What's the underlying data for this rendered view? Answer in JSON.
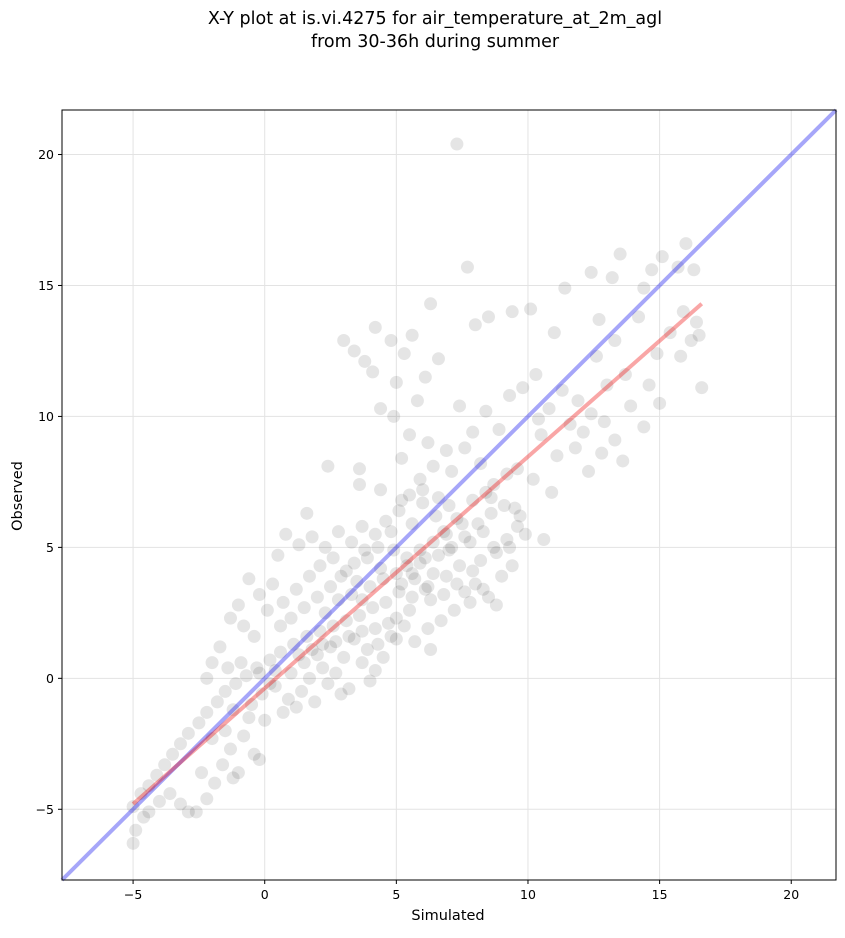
{
  "chart_data": {
    "type": "scatter",
    "title_lines": [
      "X-Y plot at is.vi.4275 for air_temperature_at_2m_agl",
      "from 30-36h during summer"
    ],
    "xlabel": "Simulated",
    "ylabel": "Observed",
    "xlim": [
      -7.7,
      21.7
    ],
    "ylim": [
      -7.7,
      21.7
    ],
    "xticks": [
      -5,
      0,
      5,
      10,
      15,
      20
    ],
    "yticks": [
      -5,
      0,
      5,
      10,
      15,
      20
    ],
    "xtick_labels": [
      "−5",
      "0",
      "5",
      "10",
      "15",
      "20"
    ],
    "ytick_labels": [
      "−5",
      "0",
      "5",
      "10",
      "15",
      "20"
    ],
    "grid": true,
    "legend": "none",
    "point_color": "#000000",
    "point_opacity": 0.1,
    "identity_line": {
      "x": [
        -7.7,
        21.7
      ],
      "y": [
        -7.7,
        21.7
      ],
      "color": "#0000ee",
      "opacity": 0.35
    },
    "fit_line": {
      "x": [
        -5.0,
        16.6
      ],
      "y": [
        -4.8,
        14.3
      ],
      "color": "#ee0000",
      "opacity": 0.35
    },
    "points": [
      [
        7.3,
        20.4
      ],
      [
        16.0,
        16.6
      ],
      [
        13.5,
        16.2
      ],
      [
        15.1,
        16.1
      ],
      [
        12.4,
        15.5
      ],
      [
        14.7,
        15.6
      ],
      [
        15.7,
        15.7
      ],
      [
        14.4,
        14.9
      ],
      [
        13.2,
        15.3
      ],
      [
        16.3,
        15.6
      ],
      [
        4.2,
        13.4
      ],
      [
        4.8,
        12.9
      ],
      [
        5.6,
        13.1
      ],
      [
        6.3,
        14.3
      ],
      [
        7.7,
        15.7
      ],
      [
        8.0,
        13.5
      ],
      [
        8.5,
        13.8
      ],
      [
        9.4,
        14.0
      ],
      [
        10.1,
        14.1
      ],
      [
        11.4,
        14.9
      ],
      [
        11.0,
        13.2
      ],
      [
        12.7,
        13.7
      ],
      [
        13.3,
        12.9
      ],
      [
        14.2,
        13.8
      ],
      [
        16.2,
        12.9
      ],
      [
        16.5,
        13.1
      ],
      [
        15.8,
        12.3
      ],
      [
        14.6,
        11.2
      ],
      [
        15.0,
        10.5
      ],
      [
        16.6,
        11.1
      ],
      [
        3.0,
        12.9
      ],
      [
        3.4,
        12.5
      ],
      [
        3.8,
        12.1
      ],
      [
        4.1,
        11.7
      ],
      [
        5.0,
        11.3
      ],
      [
        5.3,
        12.4
      ],
      [
        6.1,
        11.5
      ],
      [
        6.6,
        12.2
      ],
      [
        5.8,
        10.6
      ],
      [
        4.4,
        10.3
      ],
      [
        4.9,
        10.0
      ],
      [
        5.5,
        9.3
      ],
      [
        6.2,
        9.0
      ],
      [
        6.9,
        8.7
      ],
      [
        7.4,
        10.4
      ],
      [
        7.9,
        9.4
      ],
      [
        8.4,
        10.2
      ],
      [
        8.9,
        9.5
      ],
      [
        9.3,
        10.8
      ],
      [
        9.8,
        11.1
      ],
      [
        10.3,
        11.6
      ],
      [
        10.8,
        10.3
      ],
      [
        11.3,
        11.0
      ],
      [
        11.9,
        10.6
      ],
      [
        12.4,
        10.1
      ],
      [
        12.9,
        9.8
      ],
      [
        13.3,
        9.1
      ],
      [
        13.9,
        10.4
      ],
      [
        14.4,
        9.6
      ],
      [
        10.5,
        9.3
      ],
      [
        11.1,
        8.5
      ],
      [
        11.8,
        8.8
      ],
      [
        12.3,
        7.9
      ],
      [
        12.8,
        8.6
      ],
      [
        13.6,
        8.3
      ],
      [
        10.2,
        7.6
      ],
      [
        9.6,
        8.0
      ],
      [
        10.9,
        7.1
      ],
      [
        9.5,
        6.5
      ],
      [
        10.6,
        5.3
      ],
      [
        2.4,
        8.1
      ],
      [
        3.6,
        8.0
      ],
      [
        3.6,
        7.4
      ],
      [
        4.4,
        7.2
      ],
      [
        5.2,
        8.4
      ],
      [
        5.9,
        7.6
      ],
      [
        6.4,
        8.1
      ],
      [
        7.1,
        7.9
      ],
      [
        7.6,
        8.8
      ],
      [
        8.2,
        8.2
      ],
      [
        8.7,
        7.4
      ],
      [
        9.2,
        7.8
      ],
      [
        8.6,
        6.9
      ],
      [
        9.7,
        6.2
      ],
      [
        9.9,
        5.5
      ],
      [
        9.3,
        5.0
      ],
      [
        8.8,
        4.8
      ],
      [
        9.4,
        4.3
      ],
      [
        9.0,
        3.9
      ],
      [
        8.5,
        3.1
      ],
      [
        8.0,
        3.6
      ],
      [
        7.6,
        3.3
      ],
      [
        7.2,
        2.6
      ],
      [
        6.7,
        2.2
      ],
      [
        6.2,
        1.9
      ],
      [
        5.7,
        1.4
      ],
      [
        6.3,
        1.1
      ],
      [
        5.3,
        2.0
      ],
      [
        4.8,
        1.6
      ],
      [
        4.3,
        1.3
      ],
      [
        7.5,
        5.9
      ],
      [
        7.8,
        5.2
      ],
      [
        8.3,
        5.6
      ],
      [
        7.0,
        4.9
      ],
      [
        6.8,
        5.6
      ],
      [
        6.5,
        6.2
      ],
      [
        6.0,
        6.7
      ],
      [
        5.6,
        5.9
      ],
      [
        5.1,
        6.4
      ],
      [
        4.6,
        6.0
      ],
      [
        4.2,
        5.5
      ],
      [
        3.7,
        5.8
      ],
      [
        3.3,
        5.2
      ],
      [
        2.8,
        5.6
      ],
      [
        2.3,
        5.0
      ],
      [
        1.8,
        5.4
      ],
      [
        1.3,
        5.1
      ],
      [
        0.8,
        5.5
      ],
      [
        0.5,
        4.7
      ],
      [
        1.6,
        6.3
      ],
      [
        0.3,
        3.6
      ],
      [
        -0.2,
        3.2
      ],
      [
        -0.6,
        3.8
      ],
      [
        -1.0,
        2.8
      ],
      [
        -1.3,
        2.3
      ],
      [
        -0.8,
        2.0
      ],
      [
        -0.4,
        1.6
      ],
      [
        0.1,
        2.6
      ],
      [
        0.7,
        2.9
      ],
      [
        1.2,
        3.4
      ],
      [
        1.7,
        3.9
      ],
      [
        2.1,
        4.3
      ],
      [
        2.6,
        4.6
      ],
      [
        3.1,
        4.1
      ],
      [
        3.5,
        3.7
      ],
      [
        3.9,
        4.6
      ],
      [
        4.4,
        4.2
      ],
      [
        4.9,
        4.9
      ],
      [
        5.4,
        4.6
      ],
      [
        5.9,
        4.4
      ],
      [
        6.4,
        4.0
      ],
      [
        6.9,
        3.9
      ],
      [
        7.4,
        4.3
      ],
      [
        7.9,
        4.1
      ],
      [
        6.1,
        3.4
      ],
      [
        5.6,
        3.1
      ],
      [
        5.1,
        3.3
      ],
      [
        4.6,
        2.9
      ],
      [
        4.1,
        2.7
      ],
      [
        3.6,
        2.4
      ],
      [
        3.1,
        2.2
      ],
      [
        2.6,
        2.0
      ],
      [
        2.1,
        1.8
      ],
      [
        1.6,
        1.6
      ],
      [
        1.1,
        1.3
      ],
      [
        0.6,
        1.0
      ],
      [
        0.2,
        0.7
      ],
      [
        -0.3,
        0.4
      ],
      [
        -0.7,
        0.1
      ],
      [
        -1.1,
        -0.2
      ],
      [
        -1.5,
        -0.5
      ],
      [
        -1.8,
        -0.9
      ],
      [
        -2.2,
        -1.3
      ],
      [
        -2.5,
        -1.7
      ],
      [
        -2.9,
        -2.1
      ],
      [
        -3.2,
        -2.5
      ],
      [
        -3.5,
        -2.9
      ],
      [
        -3.8,
        -3.3
      ],
      [
        -4.1,
        -3.7
      ],
      [
        -4.4,
        -4.1
      ],
      [
        -4.7,
        -4.4
      ],
      [
        -5.0,
        -4.9
      ],
      [
        -4.6,
        -5.3
      ],
      [
        -4.9,
        -5.8
      ],
      [
        -5.0,
        -6.3
      ],
      [
        -4.4,
        -5.1
      ],
      [
        -4.0,
        -4.7
      ],
      [
        -3.6,
        -4.4
      ],
      [
        -3.2,
        -4.8
      ],
      [
        -2.9,
        -5.1
      ],
      [
        -2.6,
        -5.1
      ],
      [
        -2.2,
        -4.6
      ],
      [
        -1.9,
        -4.0
      ],
      [
        -1.6,
        -3.3
      ],
      [
        -1.3,
        -2.7
      ],
      [
        -0.8,
        -2.2
      ],
      [
        -0.4,
        -2.9
      ],
      [
        -0.2,
        -3.1
      ],
      [
        -0.6,
        -1.5
      ],
      [
        -1.0,
        -3.6
      ],
      [
        -2.4,
        -3.6
      ],
      [
        -1.2,
        -3.8
      ],
      [
        -1.5,
        -2.0
      ],
      [
        -2.0,
        -2.3
      ],
      [
        -0.1,
        -0.6
      ],
      [
        0.4,
        -0.3
      ],
      [
        0.9,
        -0.8
      ],
      [
        1.4,
        -0.5
      ],
      [
        1.9,
        -0.9
      ],
      [
        2.4,
        -0.2
      ],
      [
        0.7,
        -1.3
      ],
      [
        1.2,
        -1.1
      ],
      [
        0.0,
        -1.6
      ],
      [
        -0.5,
        -1.0
      ],
      [
        1.7,
        0.0
      ],
      [
        2.2,
        0.4
      ],
      [
        2.7,
        0.2
      ],
      [
        3.2,
        -0.4
      ],
      [
        3.7,
        0.6
      ],
      [
        4.2,
        0.3
      ],
      [
        2.0,
        0.9
      ],
      [
        2.5,
        1.2
      ],
      [
        3.0,
        0.8
      ],
      [
        3.4,
        1.5
      ],
      [
        3.9,
        1.1
      ],
      [
        4.5,
        0.8
      ],
      [
        5.0,
        1.5
      ],
      [
        0.4,
        0.3
      ],
      [
        -0.9,
        0.6
      ],
      [
        -1.4,
        0.4
      ],
      [
        -1.7,
        1.2
      ],
      [
        -2.0,
        0.6
      ],
      [
        -1.2,
        -1.2
      ],
      [
        -2.2,
        0.0
      ],
      [
        1.0,
        0.2
      ],
      [
        1.5,
        0.6
      ],
      [
        0.2,
        -0.2
      ],
      [
        -0.2,
        0.2
      ],
      [
        2.9,
        -0.6
      ],
      [
        4.0,
        -0.1
      ],
      [
        5.2,
        3.6
      ],
      [
        5.7,
        3.8
      ],
      [
        6.2,
        3.5
      ],
      [
        5.0,
        4.0
      ],
      [
        5.4,
        4.3
      ],
      [
        5.9,
        4.9
      ],
      [
        6.4,
        5.2
      ],
      [
        6.9,
        5.5
      ],
      [
        7.3,
        6.1
      ],
      [
        7.0,
        6.6
      ],
      [
        6.6,
        6.9
      ],
      [
        6.0,
        7.2
      ],
      [
        5.5,
        7.0
      ],
      [
        5.2,
        6.8
      ],
      [
        4.8,
        5.6
      ],
      [
        4.3,
        5.0
      ],
      [
        3.8,
        4.9
      ],
      [
        3.4,
        4.4
      ],
      [
        2.9,
        3.9
      ],
      [
        2.5,
        3.5
      ],
      [
        2.0,
        3.1
      ],
      [
        1.5,
        2.7
      ],
      [
        1.0,
        2.3
      ],
      [
        0.6,
        2.0
      ],
      [
        2.3,
        2.5
      ],
      [
        2.8,
        3.0
      ],
      [
        3.3,
        3.2
      ],
      [
        3.7,
        3.0
      ],
      [
        4.0,
        3.5
      ],
      [
        4.5,
        3.8
      ],
      [
        5.6,
        4.0
      ],
      [
        6.1,
        4.6
      ],
      [
        6.6,
        4.7
      ],
      [
        7.1,
        5.0
      ],
      [
        7.6,
        5.4
      ],
      [
        8.1,
        5.9
      ],
      [
        8.6,
        6.3
      ],
      [
        9.1,
        6.6
      ],
      [
        8.4,
        7.1
      ],
      [
        7.9,
        6.8
      ],
      [
        6.3,
        3.0
      ],
      [
        6.8,
        3.2
      ],
      [
        7.3,
        3.6
      ],
      [
        7.8,
        2.9
      ],
      [
        8.3,
        3.4
      ],
      [
        8.8,
        2.8
      ],
      [
        8.2,
        4.5
      ],
      [
        8.7,
        5.0
      ],
      [
        9.2,
        5.3
      ],
      [
        9.6,
        5.8
      ],
      [
        5.5,
        2.6
      ],
      [
        5.0,
        2.3
      ],
      [
        4.7,
        2.1
      ],
      [
        4.2,
        1.9
      ],
      [
        3.7,
        1.8
      ],
      [
        3.2,
        1.6
      ],
      [
        2.7,
        1.4
      ],
      [
        2.2,
        1.3
      ],
      [
        1.8,
        1.1
      ],
      [
        1.3,
        0.9
      ],
      [
        10.4,
        9.9
      ],
      [
        11.6,
        9.7
      ],
      [
        12.1,
        9.4
      ],
      [
        13.0,
        11.2
      ],
      [
        13.7,
        11.6
      ],
      [
        14.9,
        12.4
      ],
      [
        15.4,
        13.2
      ],
      [
        15.9,
        14.0
      ],
      [
        16.4,
        13.6
      ],
      [
        12.6,
        12.3
      ]
    ]
  }
}
